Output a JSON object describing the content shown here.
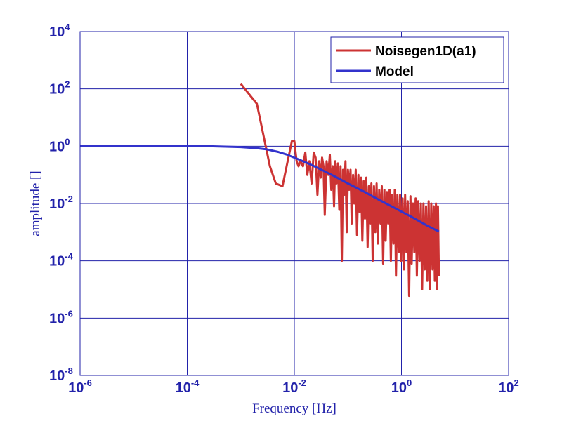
{
  "chart_data": {
    "type": "line",
    "xlabel": "Frequency [Hz]",
    "ylabel": "amplitude []",
    "x_scale": "log",
    "y_scale": "log",
    "xlim": [
      1e-06,
      100
    ],
    "ylim": [
      1e-08,
      10000
    ],
    "grid": true,
    "legend_position": "top-right",
    "x_ticks": [
      {
        "base": "10",
        "exp": "-6",
        "value": 1e-06
      },
      {
        "base": "10",
        "exp": "-4",
        "value": 0.0001
      },
      {
        "base": "10",
        "exp": "-2",
        "value": 0.01
      },
      {
        "base": "10",
        "exp": "0",
        "value": 1
      },
      {
        "base": "10",
        "exp": "2",
        "value": 100
      }
    ],
    "y_ticks": [
      {
        "base": "10",
        "exp": "4",
        "value": 10000
      },
      {
        "base": "10",
        "exp": "2",
        "value": 100
      },
      {
        "base": "10",
        "exp": "0",
        "value": 1
      },
      {
        "base": "10",
        "exp": "-2",
        "value": 0.01
      },
      {
        "base": "10",
        "exp": "-4",
        "value": 0.0001
      },
      {
        "base": "10",
        "exp": "-6",
        "value": 1e-06
      },
      {
        "base": "10",
        "exp": "-8",
        "value": 1e-08
      }
    ],
    "series": [
      {
        "name": "Noisegen1D(a1)",
        "color": "#cc3333",
        "x": [
          0.001,
          0.002,
          0.0035,
          0.0045,
          0.006,
          0.0075,
          0.009,
          0.01,
          0.011,
          0.012,
          0.013,
          0.0145,
          0.016,
          0.0175,
          0.019,
          0.021,
          0.023,
          0.025,
          0.027,
          0.029,
          0.031,
          0.033,
          0.035,
          0.037,
          0.04,
          0.043,
          0.046,
          0.049,
          0.052,
          0.055,
          0.058,
          0.061,
          0.065,
          0.069,
          0.073,
          0.077,
          0.081,
          0.085,
          0.09,
          0.095,
          0.1,
          0.106,
          0.112,
          0.118,
          0.125,
          0.132,
          0.14,
          0.148,
          0.157,
          0.166,
          0.176,
          0.186,
          0.197,
          0.208,
          0.22,
          0.233,
          0.246,
          0.26,
          0.275,
          0.29,
          0.307,
          0.325,
          0.343,
          0.363,
          0.384,
          0.406,
          0.429,
          0.454,
          0.48,
          0.507,
          0.536,
          0.567,
          0.6,
          0.634,
          0.67,
          0.709,
          0.75,
          0.79,
          0.84,
          0.89,
          0.94,
          0.99,
          1.05,
          1.11,
          1.17,
          1.24,
          1.31,
          1.39,
          1.47,
          1.55,
          1.64,
          1.74,
          1.84,
          1.94,
          2.05,
          2.17,
          2.3,
          2.43,
          2.57,
          2.72,
          2.88,
          3.04,
          3.22,
          3.4,
          3.6,
          3.8,
          4.0,
          4.2,
          4.4,
          4.6,
          4.8,
          5.0
        ],
        "y": [
          150,
          30,
          0.2,
          0.05,
          0.04,
          0.3,
          1.5,
          1.5,
          0.3,
          0.2,
          0.3,
          0.2,
          0.6,
          0.1,
          0.3,
          0.05,
          0.6,
          0.4,
          0.02,
          0.3,
          0.08,
          0.4,
          0.2,
          0.004,
          0.3,
          0.1,
          0.5,
          0.03,
          0.2,
          0.008,
          0.3,
          0.05,
          0.25,
          0.006,
          0.2,
          0.0001,
          0.15,
          0.02,
          0.3,
          0.001,
          0.15,
          0.03,
          0.15,
          0.002,
          0.1,
          0.01,
          0.15,
          0.0008,
          0.1,
          0.005,
          0.08,
          0.0005,
          0.06,
          0.003,
          0.08,
          0.0003,
          0.04,
          0.002,
          0.05,
          0.0001,
          0.04,
          0.001,
          0.05,
          0.0004,
          0.03,
          0.002,
          0.04,
          8e-05,
          0.03,
          0.0005,
          0.025,
          0.002,
          0.03,
          0.0001,
          0.02,
          0.0004,
          0.03,
          3e-05,
          0.02,
          0.0002,
          0.02,
          0.0001,
          0.015,
          5e-05,
          0.02,
          0.0002,
          0.012,
          6e-06,
          0.018,
          8e-05,
          0.01,
          0.0002,
          0.015,
          3e-05,
          0.012,
          0.0001,
          0.01,
          1e-05,
          0.01,
          5e-05,
          0.008,
          2e-05,
          0.012,
          1e-05,
          0.01,
          5e-05,
          0.008,
          2e-05,
          0.01,
          1e-05,
          0.008,
          3e-05
        ]
      },
      {
        "name": "Model",
        "color": "#3333cc",
        "x": [
          1e-06,
          3e-06,
          1e-05,
          3e-05,
          0.0001,
          0.0003,
          0.001,
          0.002,
          0.003,
          0.005,
          0.007,
          0.01,
          0.015,
          0.02,
          0.03,
          0.05,
          0.07,
          0.1,
          0.15,
          0.2,
          0.3,
          0.5,
          0.7,
          1.0,
          1.5,
          2.0,
          3.0,
          5.0
        ],
        "y": [
          1.0,
          1.0,
          1.0,
          1.0,
          1.0,
          0.99,
          0.93,
          0.85,
          0.78,
          0.63,
          0.52,
          0.4,
          0.29,
          0.23,
          0.16,
          0.1,
          0.072,
          0.05,
          0.034,
          0.026,
          0.017,
          0.0103,
          0.0074,
          0.0052,
          0.0035,
          0.0026,
          0.0017,
          0.00105
        ]
      }
    ]
  }
}
